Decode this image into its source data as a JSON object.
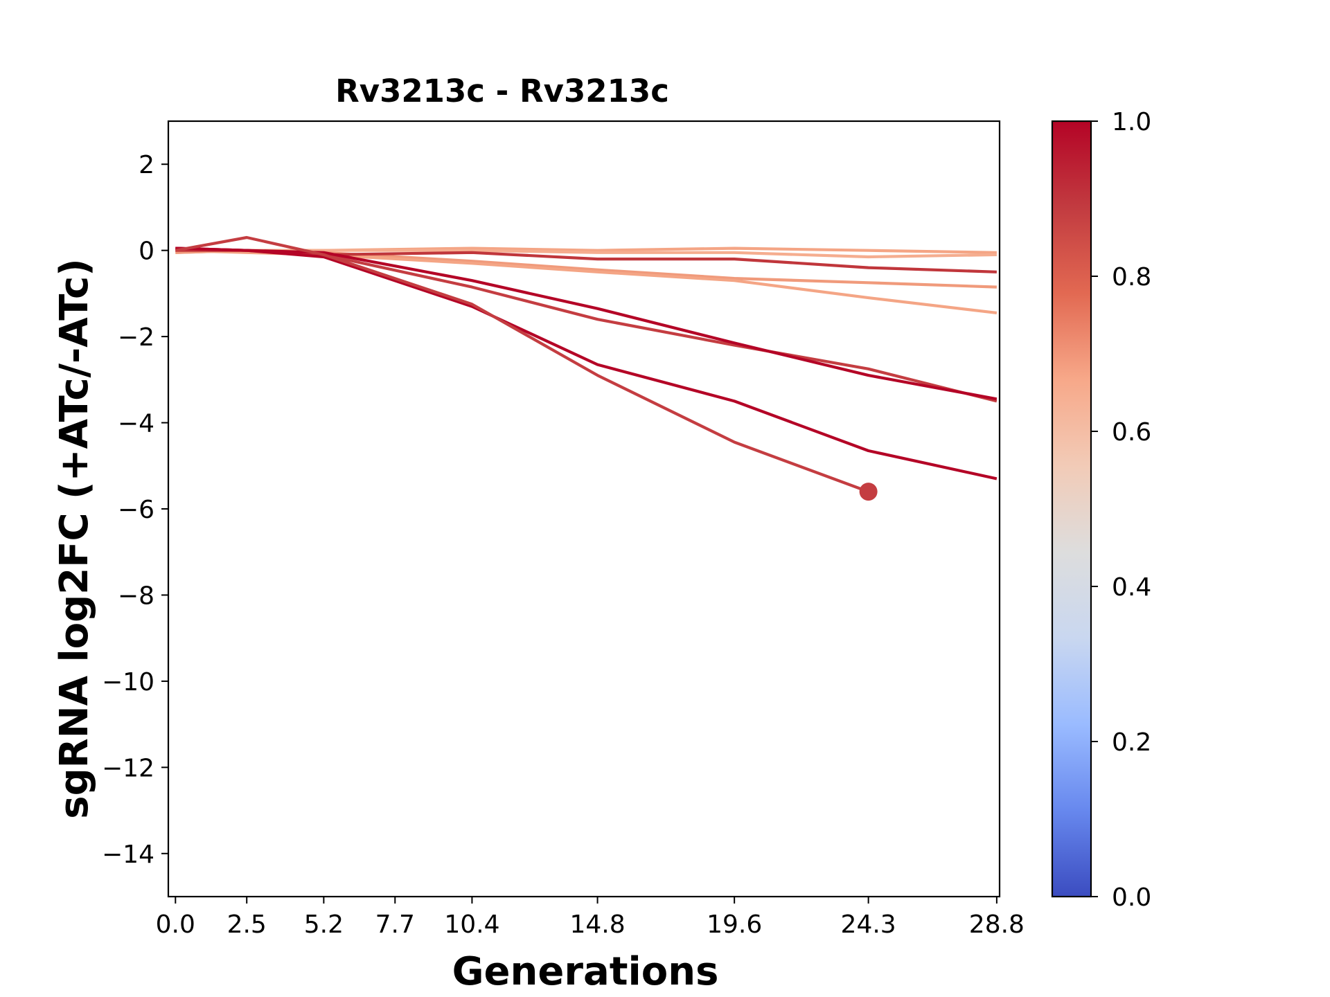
{
  "chart_data": {
    "type": "line",
    "title": "Rv3213c - Rv3213c",
    "xlabel": "Generations",
    "ylabel": "sgRNA log2FC (+ATc/-ATc)",
    "xticks": [
      0.0,
      2.5,
      5.2,
      7.7,
      10.4,
      14.8,
      19.6,
      24.3,
      28.8
    ],
    "xtick_labels": [
      "0.0",
      "2.5",
      "5.2",
      "7.7",
      "10.4",
      "14.8",
      "19.6",
      "24.3",
      "28.8"
    ],
    "xlim": [
      -0.25,
      28.9
    ],
    "yticks": [
      2,
      0,
      -2,
      -4,
      -6,
      -8,
      -10,
      -12,
      -14
    ],
    "ytick_labels": [
      "2",
      "0",
      "−2",
      "−4",
      "−6",
      "−8",
      "−10",
      "−12",
      "−14"
    ],
    "ylim": [
      -15,
      3
    ],
    "grid": false,
    "colorbar": {
      "colormap": "coolwarm",
      "range": [
        0.0,
        1.0
      ],
      "ticks": [
        0.0,
        0.2,
        0.4,
        0.6,
        0.8,
        1.0
      ],
      "tick_labels": [
        "0.0",
        "0.2",
        "0.4",
        "0.6",
        "0.8",
        "1.0"
      ],
      "stops": [
        "#3b4cc0",
        "#6788ee",
        "#9abbff",
        "#c9d7f0",
        "#dddddd",
        "#f2cbb7",
        "#f7a889",
        "#e26952",
        "#c23b40",
        "#b40426"
      ]
    },
    "series": [
      {
        "color": "#f4a585",
        "x": [
          0,
          2.5,
          5.2,
          10.4,
          14.8,
          19.6,
          24.3,
          28.8
        ],
        "y": [
          0.0,
          0.0,
          0.0,
          0.05,
          0.0,
          0.05,
          0.0,
          -0.05
        ]
      },
      {
        "color": "#f5ad8f",
        "x": [
          0,
          2.5,
          5.2,
          10.4,
          14.8,
          19.6,
          24.3,
          28.8
        ],
        "y": [
          -0.05,
          0.0,
          0.0,
          0.0,
          -0.05,
          -0.05,
          -0.15,
          -0.1
        ]
      },
      {
        "color": "#f09a7b",
        "x": [
          0,
          2.5,
          5.2,
          10.4,
          14.8,
          19.6,
          24.3,
          28.8
        ],
        "y": [
          -0.05,
          0.0,
          -0.05,
          -0.25,
          -0.45,
          -0.65,
          -0.75,
          -0.85
        ]
      },
      {
        "color": "#f4a585",
        "x": [
          0,
          2.5,
          5.2,
          10.4,
          14.8,
          19.6,
          24.3,
          28.8
        ],
        "y": [
          0.0,
          -0.05,
          -0.1,
          -0.3,
          -0.5,
          -0.7,
          -1.1,
          -1.45
        ]
      },
      {
        "color": "#c0363b",
        "x": [
          0,
          2.5,
          5.2,
          10.4,
          14.8,
          19.6,
          24.3,
          28.8
        ],
        "y": [
          0.0,
          0.0,
          -0.1,
          -0.05,
          -0.2,
          -0.2,
          -0.4,
          -0.5
        ]
      },
      {
        "color": "#c43d41",
        "x": [
          0,
          2.5,
          5.2,
          10.4,
          14.8,
          19.6,
          24.3,
          28.8
        ],
        "y": [
          0.05,
          0.0,
          -0.1,
          -0.85,
          -1.6,
          -2.2,
          -2.75,
          -3.5
        ]
      },
      {
        "color": "#b40426",
        "x": [
          0,
          2.5,
          5.2,
          10.4,
          14.8,
          19.6,
          24.3,
          28.8
        ],
        "y": [
          0.05,
          0.0,
          -0.05,
          -0.7,
          -1.35,
          -2.15,
          -2.9,
          -3.45
        ]
      },
      {
        "color": "#b40426",
        "x": [
          0,
          2.5,
          5.2,
          10.4,
          14.8,
          19.6,
          24.3,
          28.8
        ],
        "y": [
          0.05,
          0.0,
          -0.15,
          -1.3,
          -2.65,
          -3.5,
          -4.65,
          -5.3
        ]
      },
      {
        "color": "#c43d41",
        "x": [
          0,
          2.5,
          5.2,
          10.4,
          14.8,
          19.6,
          24.3
        ],
        "y": [
          0.0,
          0.3,
          -0.1,
          -1.25,
          -2.9,
          -4.45,
          -5.6
        ],
        "end_marker": true
      }
    ]
  }
}
